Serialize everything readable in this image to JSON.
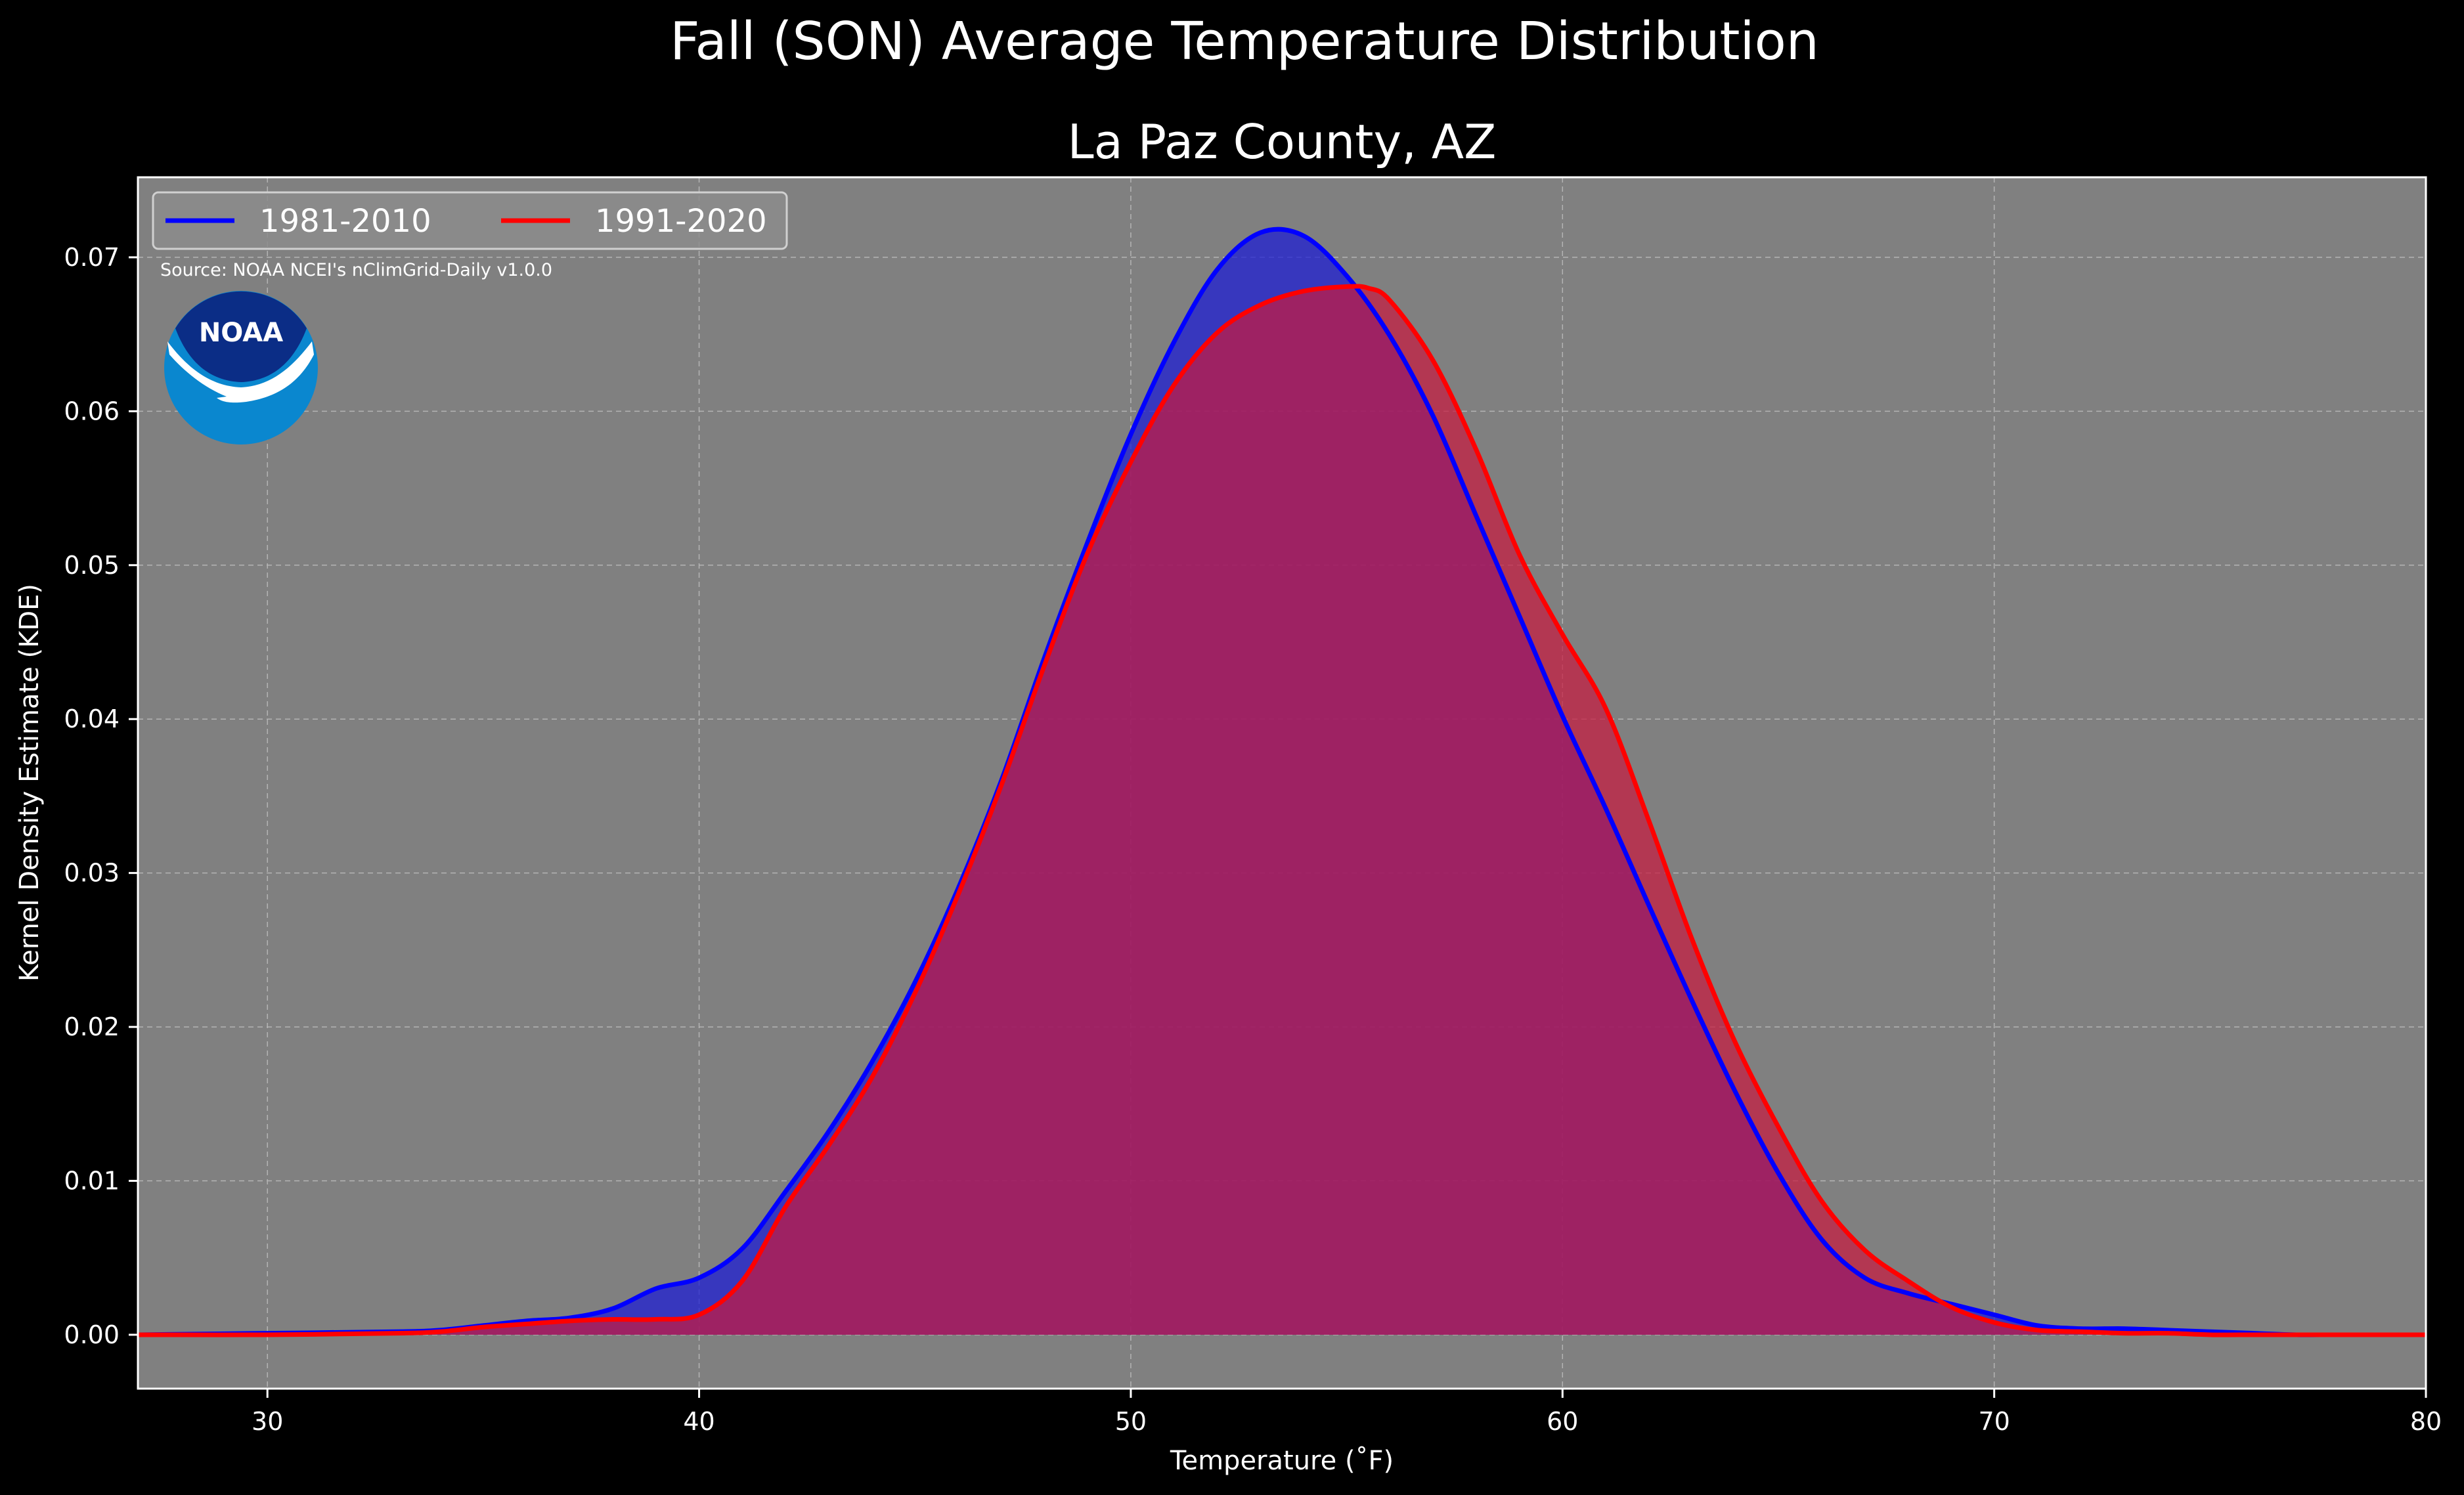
{
  "chart_data": {
    "type": "area",
    "title": "Fall (SON) Average Temperature Distribution",
    "subtitle": "La Paz County, AZ",
    "xlabel": "Temperature ($^\\circ$F)",
    "xlabel_display": "Temperature (˚F)",
    "ylabel": "Kernel Density Estimate (KDE)",
    "xlim": [
      27,
      80
    ],
    "ylim": [
      -0.0035,
      0.0752
    ],
    "xticks": [
      30,
      40,
      50,
      60,
      70,
      80
    ],
    "xtick_labels": [
      "30",
      "40",
      "50",
      "60",
      "70",
      "80"
    ],
    "yticks": [
      0.0,
      0.01,
      0.02,
      0.03,
      0.04,
      0.05,
      0.06,
      0.07
    ],
    "ytick_labels": [
      "0.00",
      "0.01",
      "0.02",
      "0.03",
      "0.04",
      "0.05",
      "0.06",
      "0.07"
    ],
    "grid": true,
    "legend_position": "top-left",
    "plot_background": "#808080",
    "page_background": "#000000",
    "annotation": "Source: NOAA NCEI's nClimGrid-Daily v1.0.0",
    "series": [
      {
        "name": "1981-2010",
        "color": "#0000ff",
        "fill_color": "#1a1ad6",
        "x": [
          27,
          30,
          33,
          34,
          35,
          36,
          37,
          38,
          39,
          40,
          41,
          42,
          43,
          44,
          45,
          46,
          47,
          48,
          49,
          50,
          51,
          52,
          53,
          54,
          55,
          56,
          57,
          58,
          59,
          60,
          61,
          62,
          63,
          64,
          65,
          66,
          67,
          68,
          69,
          70,
          71,
          72,
          73,
          74,
          75,
          76,
          77,
          78,
          80
        ],
        "y": [
          0.0,
          0.0001,
          0.0002,
          0.0003,
          0.0006,
          0.0009,
          0.0011,
          0.0017,
          0.003,
          0.0037,
          0.0056,
          0.0093,
          0.0132,
          0.0177,
          0.0229,
          0.029,
          0.036,
          0.044,
          0.0515,
          0.0585,
          0.0645,
          0.0692,
          0.0716,
          0.0714,
          0.0688,
          0.0649,
          0.0597,
          0.0532,
          0.0467,
          0.0402,
          0.0342,
          0.0279,
          0.0217,
          0.0158,
          0.0105,
          0.0062,
          0.0037,
          0.0027,
          0.002,
          0.0013,
          0.0006,
          0.0004,
          0.0004,
          0.0003,
          0.0002,
          0.0001,
          0.0,
          0.0,
          0.0
        ]
      },
      {
        "name": "1991-2020",
        "color": "#ff0000",
        "fill_color": "#c61a40",
        "x": [
          27,
          30,
          33,
          34,
          35,
          36,
          37,
          38,
          39,
          40,
          41,
          42,
          43,
          44,
          45,
          46,
          47,
          48,
          49,
          50,
          51,
          52,
          53,
          54,
          55,
          55.5,
          56,
          57,
          58,
          59,
          60,
          61,
          62,
          63,
          64,
          65,
          66,
          67,
          68,
          69,
          70,
          71,
          72,
          73,
          74,
          75,
          76,
          77,
          78,
          80
        ],
        "y": [
          0.0,
          0.0,
          0.0001,
          0.0002,
          0.0005,
          0.0007,
          0.0009,
          0.001,
          0.001,
          0.0013,
          0.0035,
          0.0083,
          0.0123,
          0.0167,
          0.0222,
          0.0286,
          0.0357,
          0.0435,
          0.0508,
          0.0567,
          0.0617,
          0.0651,
          0.0669,
          0.0678,
          0.0681,
          0.068,
          0.0672,
          0.0633,
          0.0575,
          0.0507,
          0.0455,
          0.0407,
          0.0334,
          0.0257,
          0.019,
          0.0135,
          0.0087,
          0.0055,
          0.0035,
          0.0018,
          0.0008,
          0.0003,
          0.0002,
          0.0001,
          0.0001,
          0.0,
          0.0,
          0.0,
          0.0,
          0.0
        ]
      }
    ]
  }
}
